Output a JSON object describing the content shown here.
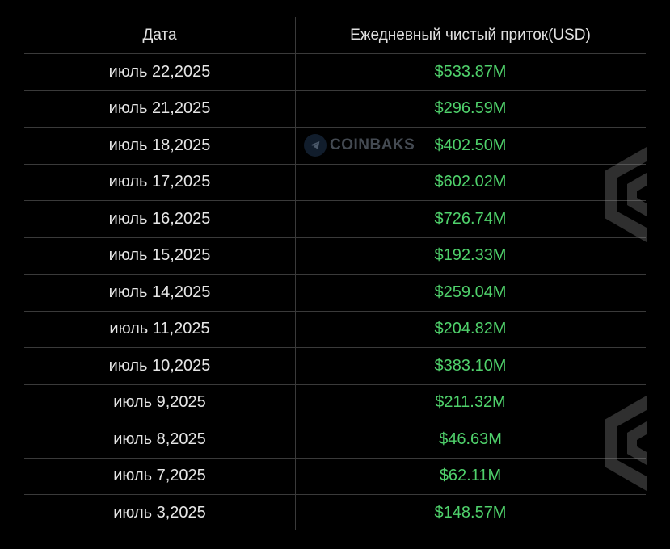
{
  "table": {
    "headers": {
      "date": "Дата",
      "inflow": "Ежедневный чистый приток(USD)"
    },
    "rows": [
      {
        "date": "июль 22,2025",
        "inflow": "$533.87M"
      },
      {
        "date": "июль 21,2025",
        "inflow": "$296.59M"
      },
      {
        "date": "июль 18,2025",
        "inflow": "$402.50M"
      },
      {
        "date": "июль 17,2025",
        "inflow": "$602.02M"
      },
      {
        "date": "июль 16,2025",
        "inflow": "$726.74M"
      },
      {
        "date": "июль 15,2025",
        "inflow": "$192.33M"
      },
      {
        "date": "июль 14,2025",
        "inflow": "$259.04M"
      },
      {
        "date": "июль 11,2025",
        "inflow": "$204.82M"
      },
      {
        "date": "июль 10,2025",
        "inflow": "$383.10M"
      },
      {
        "date": "июль 9,2025",
        "inflow": "$211.32M"
      },
      {
        "date": "июль 8,2025",
        "inflow": "$46.63M"
      },
      {
        "date": "июль 7,2025",
        "inflow": "$62.11M"
      },
      {
        "date": "июль 3,2025",
        "inflow": "$148.57M"
      }
    ]
  },
  "watermark": {
    "text": "COINBAKS",
    "icon": "telegram-icon"
  },
  "colors": {
    "background": "#000000",
    "positive_value": "#4fd16b",
    "text": "#e6e6e6",
    "grid": "#3a3a3a"
  }
}
